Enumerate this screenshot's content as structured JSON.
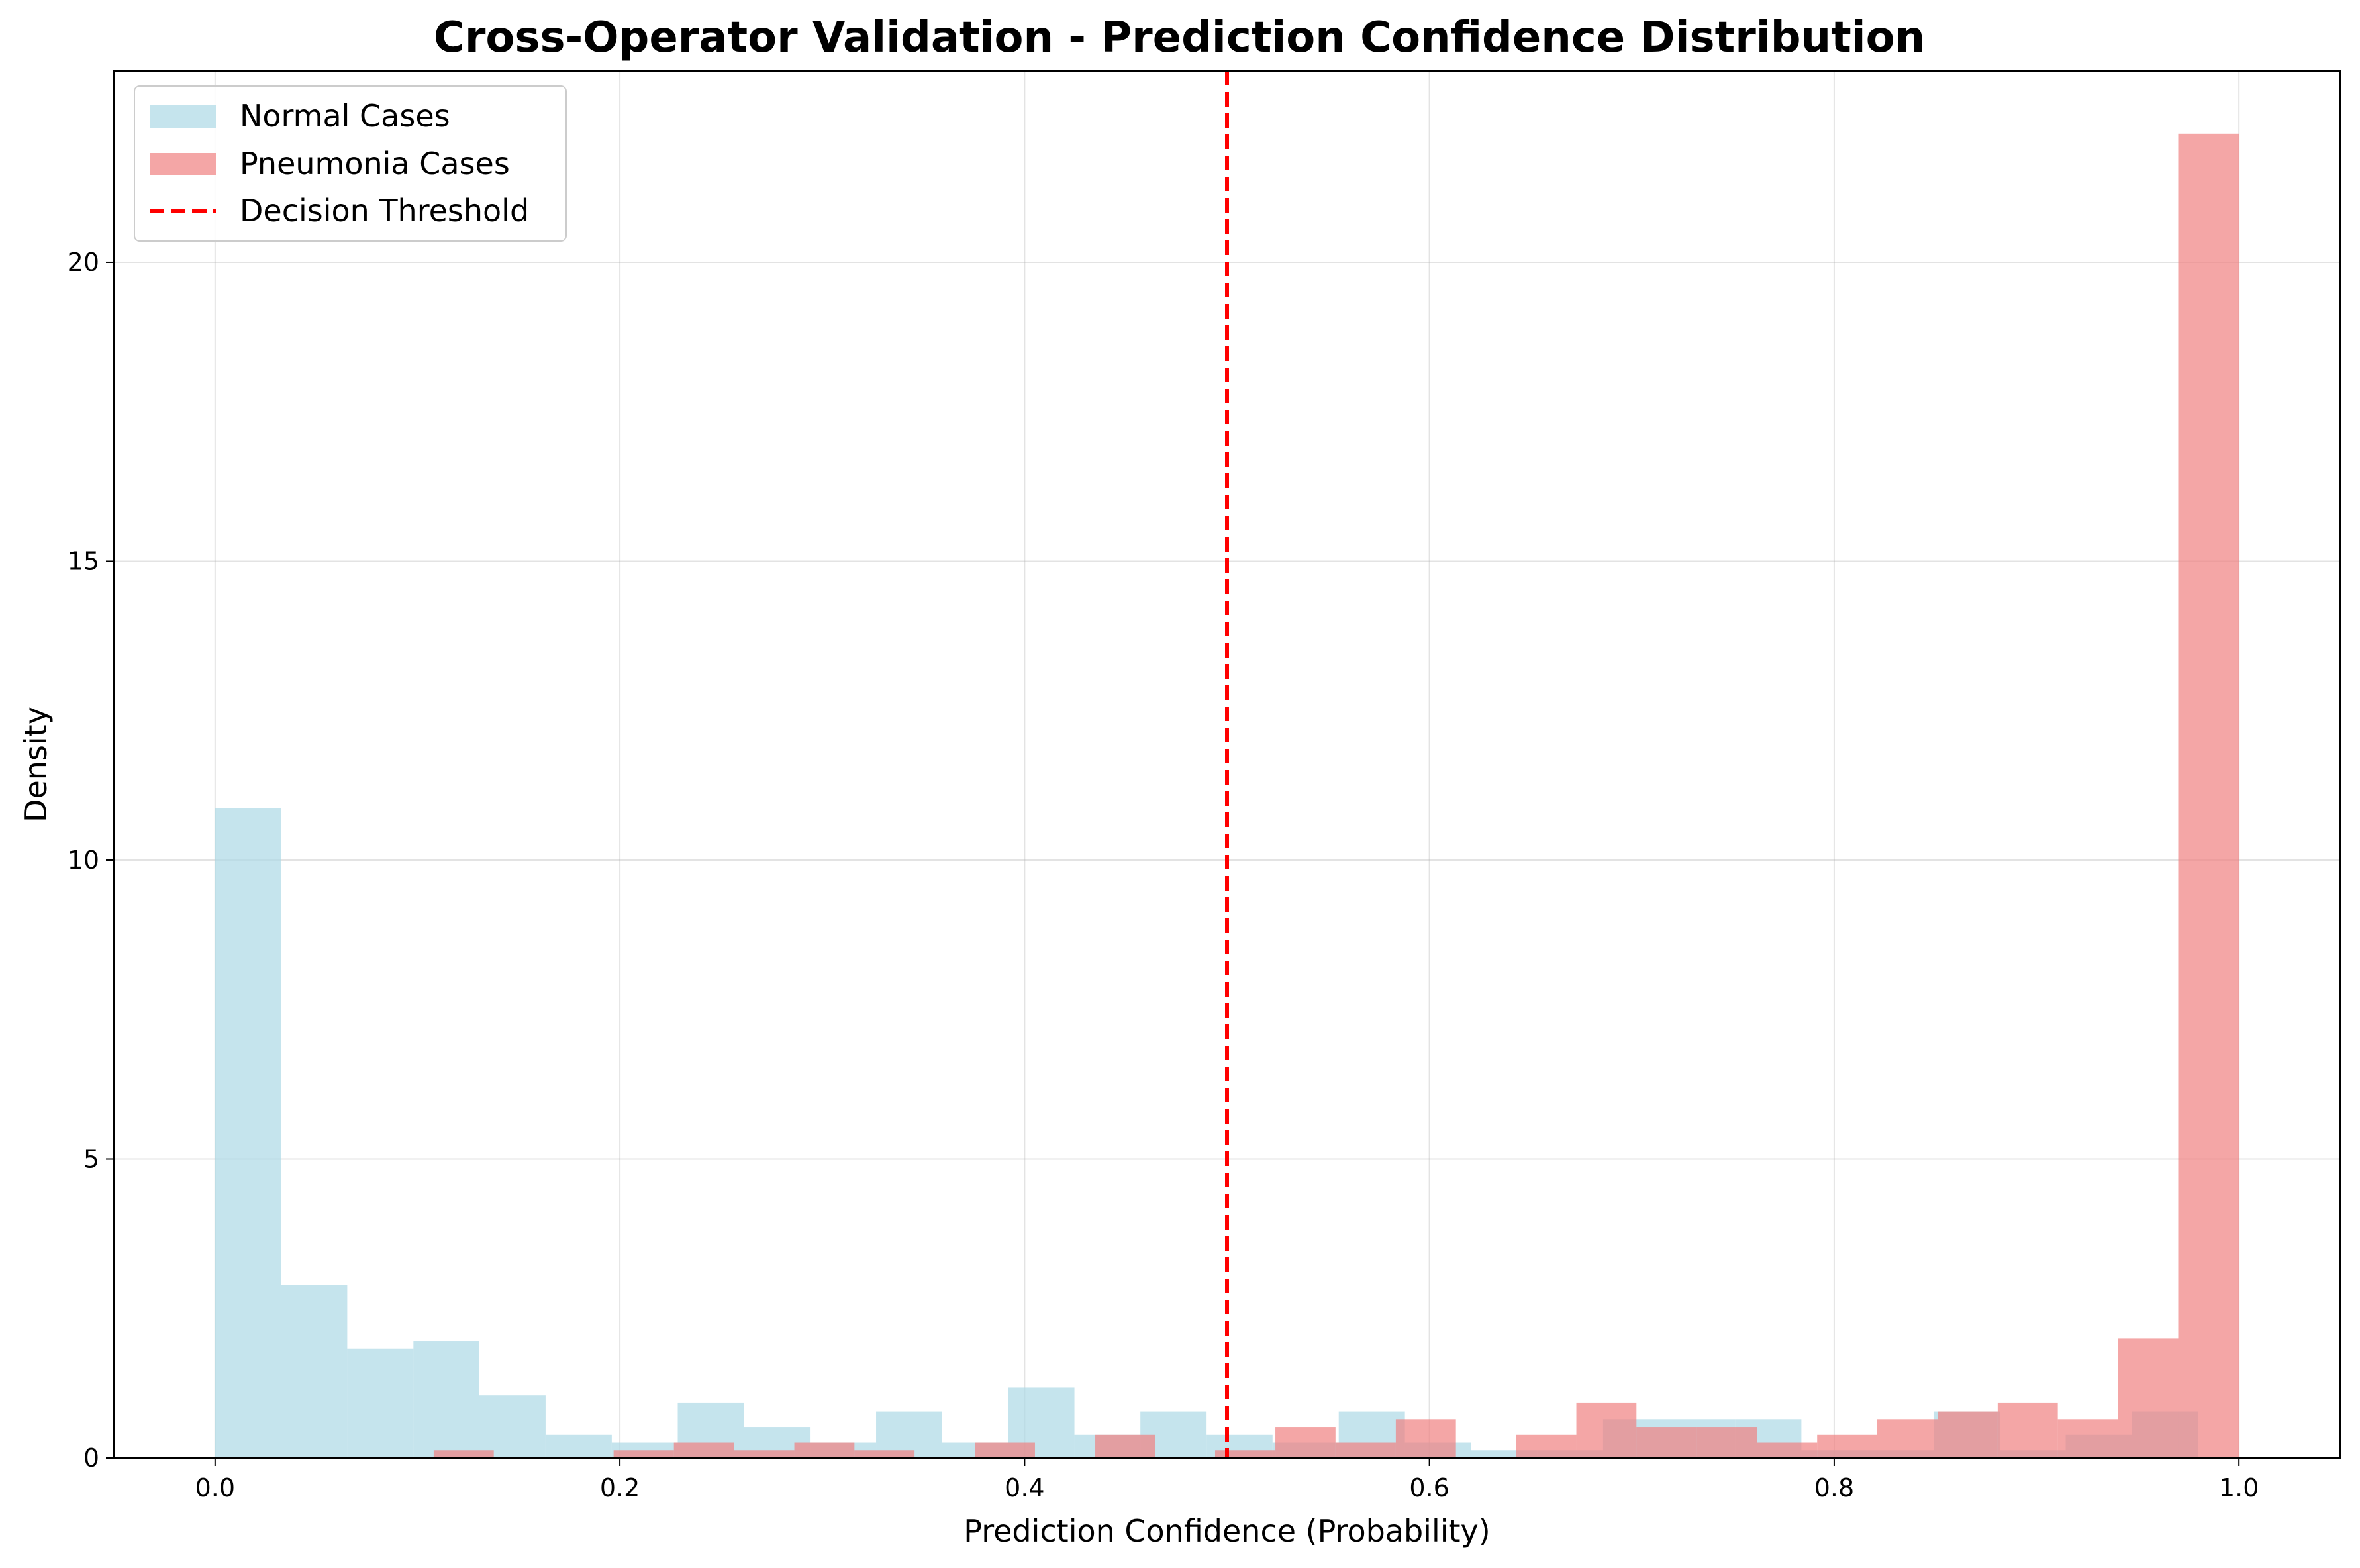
{
  "chart_data": {
    "type": "histogram",
    "title": "Cross-Operator Validation - Prediction Confidence Distribution",
    "xlabel": "Prediction Confidence (Probability)",
    "ylabel": "Density",
    "xlim": [
      -0.05,
      1.05
    ],
    "ylim": [
      0,
      23.2
    ],
    "xticks": [
      "0.0",
      "0.2",
      "0.4",
      "0.6",
      "0.8",
      "1.0"
    ],
    "yticks": [
      "0",
      "5",
      "10",
      "15",
      "20"
    ],
    "grid": true,
    "legend_position": "top-left",
    "series": [
      {
        "name": "Normal Cases",
        "color": "#add8e6",
        "opacity": 0.7,
        "bins": [
          {
            "x0": 0.0,
            "x1": 0.0327,
            "value": 10.87
          },
          {
            "x0": 0.0327,
            "x1": 0.0653,
            "value": 2.9
          },
          {
            "x0": 0.0653,
            "x1": 0.098,
            "value": 1.83
          },
          {
            "x0": 0.098,
            "x1": 0.1306,
            "value": 1.96
          },
          {
            "x0": 0.1306,
            "x1": 0.1633,
            "value": 1.05
          },
          {
            "x0": 0.1633,
            "x1": 0.196,
            "value": 0.39
          },
          {
            "x0": 0.196,
            "x1": 0.2286,
            "value": 0.26
          },
          {
            "x0": 0.2286,
            "x1": 0.2613,
            "value": 0.92
          },
          {
            "x0": 0.2613,
            "x1": 0.2939,
            "value": 0.52
          },
          {
            "x0": 0.2939,
            "x1": 0.3266,
            "value": 0.26
          },
          {
            "x0": 0.3266,
            "x1": 0.3592,
            "value": 0.78
          },
          {
            "x0": 0.3592,
            "x1": 0.3919,
            "value": 0.26
          },
          {
            "x0": 0.3919,
            "x1": 0.4246,
            "value": 1.18
          },
          {
            "x0": 0.4246,
            "x1": 0.4572,
            "value": 0.39
          },
          {
            "x0": 0.4572,
            "x1": 0.4899,
            "value": 0.78
          },
          {
            "x0": 0.4899,
            "x1": 0.5225,
            "value": 0.39
          },
          {
            "x0": 0.5225,
            "x1": 0.5552,
            "value": 0.26
          },
          {
            "x0": 0.5552,
            "x1": 0.5879,
            "value": 0.78
          },
          {
            "x0": 0.5879,
            "x1": 0.6205,
            "value": 0.26
          },
          {
            "x0": 0.6205,
            "x1": 0.6532,
            "value": 0.13
          },
          {
            "x0": 0.6532,
            "x1": 0.6858,
            "value": 0.13
          },
          {
            "x0": 0.6858,
            "x1": 0.7185,
            "value": 0.65
          },
          {
            "x0": 0.7185,
            "x1": 0.7512,
            "value": 0.65
          },
          {
            "x0": 0.7512,
            "x1": 0.7838,
            "value": 0.65
          },
          {
            "x0": 0.7838,
            "x1": 0.8165,
            "value": 0.13
          },
          {
            "x0": 0.8165,
            "x1": 0.8491,
            "value": 0.13
          },
          {
            "x0": 0.8491,
            "x1": 0.8818,
            "value": 0.78
          },
          {
            "x0": 0.8818,
            "x1": 0.9144,
            "value": 0.13
          },
          {
            "x0": 0.9144,
            "x1": 0.9471,
            "value": 0.39
          },
          {
            "x0": 0.9471,
            "x1": 0.9798,
            "value": 0.78
          }
        ]
      },
      {
        "name": "Pneumonia Cases",
        "color": "#f08080",
        "opacity": 0.7,
        "bins": [
          {
            "x0": 0.108,
            "x1": 0.1377,
            "value": 0.13
          },
          {
            "x0": 0.1969,
            "x1": 0.2267,
            "value": 0.13
          },
          {
            "x0": 0.2267,
            "x1": 0.2564,
            "value": 0.26
          },
          {
            "x0": 0.2564,
            "x1": 0.2862,
            "value": 0.13
          },
          {
            "x0": 0.2862,
            "x1": 0.3159,
            "value": 0.26
          },
          {
            "x0": 0.3159,
            "x1": 0.3456,
            "value": 0.13
          },
          {
            "x0": 0.3754,
            "x1": 0.4051,
            "value": 0.26
          },
          {
            "x0": 0.4349,
            "x1": 0.4646,
            "value": 0.39
          },
          {
            "x0": 0.4941,
            "x1": 0.5239,
            "value": 0.13
          },
          {
            "x0": 0.5239,
            "x1": 0.5536,
            "value": 0.52
          },
          {
            "x0": 0.5536,
            "x1": 0.5834,
            "value": 0.26
          },
          {
            "x0": 0.5834,
            "x1": 0.6131,
            "value": 0.65
          },
          {
            "x0": 0.6429,
            "x1": 0.6726,
            "value": 0.39
          },
          {
            "x0": 0.6726,
            "x1": 0.7023,
            "value": 0.92
          },
          {
            "x0": 0.7023,
            "x1": 0.7321,
            "value": 0.52
          },
          {
            "x0": 0.7321,
            "x1": 0.7618,
            "value": 0.52
          },
          {
            "x0": 0.7618,
            "x1": 0.7916,
            "value": 0.26
          },
          {
            "x0": 0.7916,
            "x1": 0.8213,
            "value": 0.39
          },
          {
            "x0": 0.8213,
            "x1": 0.8511,
            "value": 0.65
          },
          {
            "x0": 0.8511,
            "x1": 0.8808,
            "value": 0.78
          },
          {
            "x0": 0.8808,
            "x1": 0.9105,
            "value": 0.92
          },
          {
            "x0": 0.9105,
            "x1": 0.9403,
            "value": 0.65
          },
          {
            "x0": 0.9403,
            "x1": 0.97,
            "value": 2.0
          },
          {
            "x0": 0.97,
            "x1": 1.0,
            "value": 22.15
          }
        ]
      }
    ],
    "threshold": {
      "name": "Decision Threshold",
      "x": 0.5,
      "color": "#ff0000",
      "style": "dashed"
    }
  }
}
